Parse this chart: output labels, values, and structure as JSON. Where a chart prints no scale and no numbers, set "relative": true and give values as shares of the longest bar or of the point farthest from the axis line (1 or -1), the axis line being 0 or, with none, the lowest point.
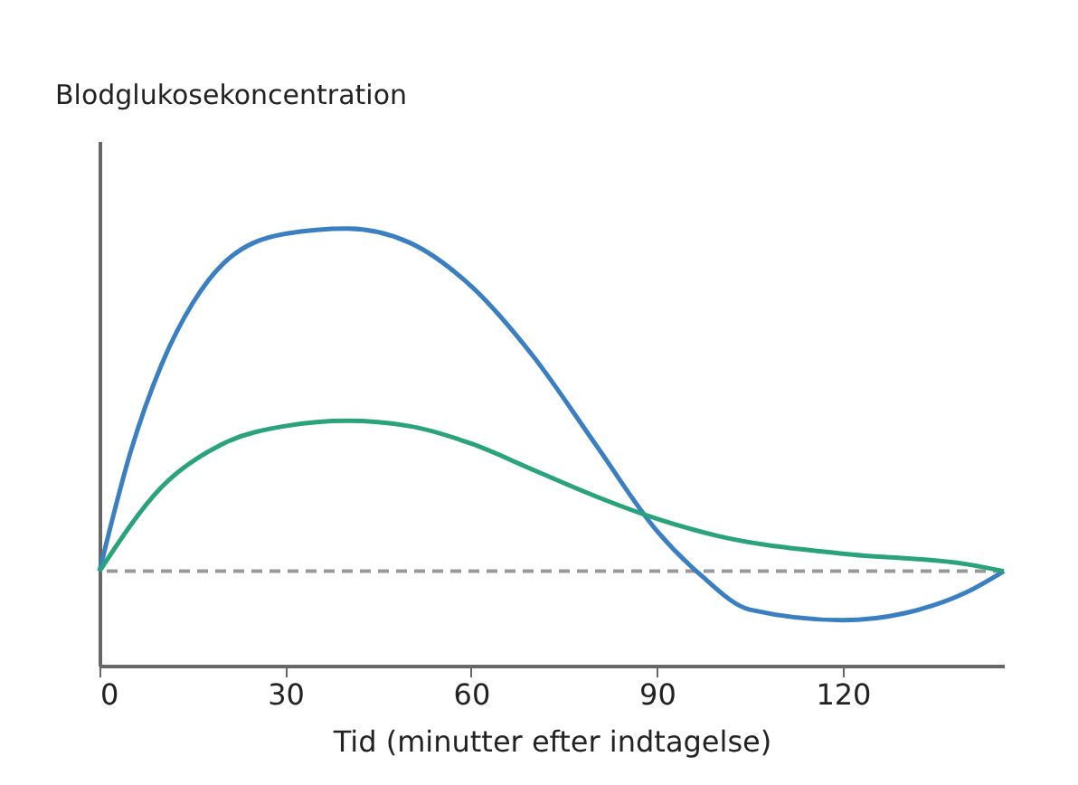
{
  "chart_data": {
    "type": "line",
    "relative": true,
    "xlabel": "Tid (minutter efter indtagelse)",
    "ylabel": "Blodglukosekoncentration",
    "xlim": [
      0,
      146
    ],
    "xticks": [
      0,
      30,
      60,
      90,
      120
    ],
    "grid": false,
    "legend": false,
    "marker": "none",
    "line_style": "solid",
    "tick_labels": "x",
    "series": [
      {
        "color": "#3a7fc1",
        "x": [
          0,
          5,
          10,
          15,
          20,
          30,
          40,
          50,
          60,
          70,
          80,
          90,
          97,
          105,
          120,
          130,
          140,
          146
        ],
        "values": [
          0.216,
          0.488,
          0.688,
          0.828,
          0.92,
          0.988,
          1.0,
          0.968,
          0.868,
          0.708,
          0.508,
          0.308,
          0.208,
          0.128,
          0.104,
          0.12,
          0.168,
          0.216
        ]
      },
      {
        "color": "#2aa37a",
        "x": [
          0,
          10,
          20,
          30,
          40,
          50,
          60,
          70,
          80,
          90,
          100,
          120,
          140,
          146
        ],
        "values": [
          0.216,
          0.408,
          0.508,
          0.548,
          0.56,
          0.548,
          0.508,
          0.448,
          0.388,
          0.336,
          0.296,
          0.256,
          0.232,
          0.216
        ]
      }
    ],
    "ref_lines": [
      {
        "axis": "y",
        "value": 0.216,
        "color": "#999999",
        "line_style": "dashed"
      }
    ]
  }
}
